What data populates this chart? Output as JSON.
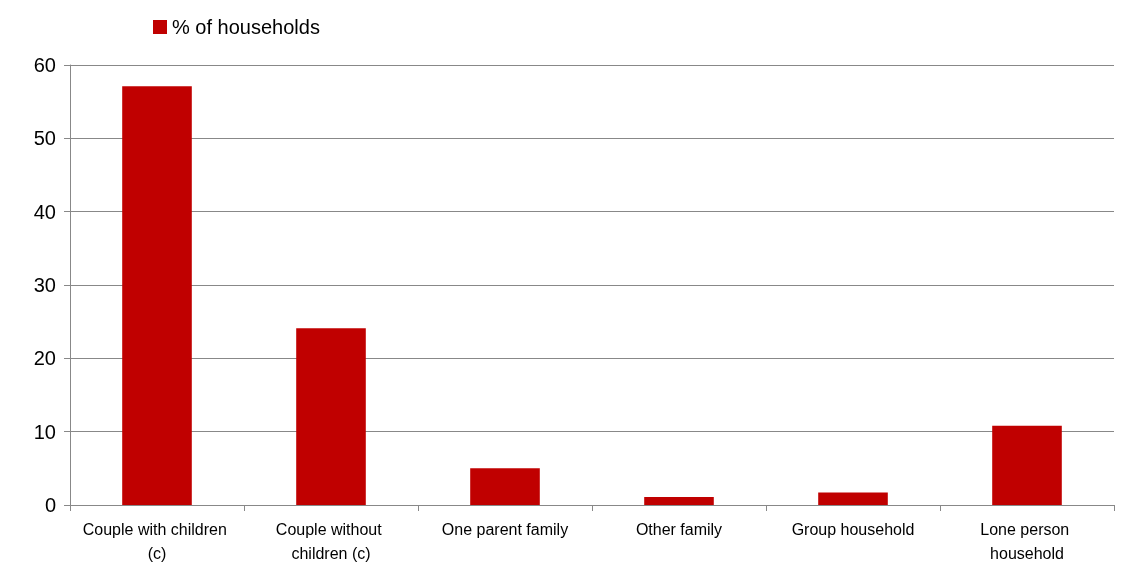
{
  "chart_data": {
    "type": "bar",
    "categories": [
      "Couple with children (c)",
      "Couple without children (c)",
      "One parent family",
      "Other family",
      "Group household",
      "Lone person household"
    ],
    "series": [
      {
        "name": "% of households",
        "color": "#c00000",
        "values": [
          57.1,
          24.1,
          5.0,
          1.1,
          1.7,
          10.8
        ]
      }
    ],
    "ylim": [
      0,
      60
    ],
    "yticks": [
      0,
      10,
      20,
      30,
      40,
      50,
      60
    ],
    "grid": "y",
    "legend": "top left"
  }
}
